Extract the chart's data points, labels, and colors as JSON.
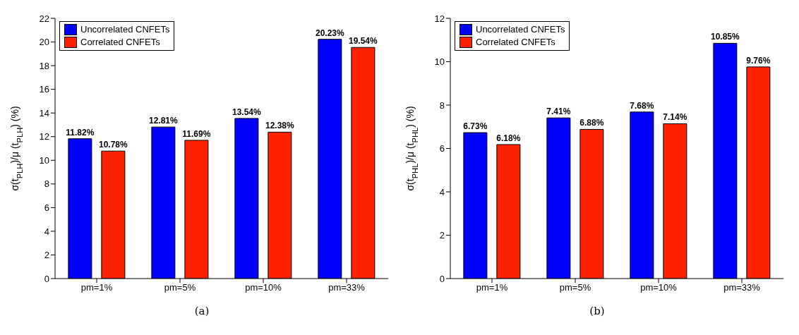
{
  "chart_data": [
    {
      "type": "bar",
      "ylabel": "σ(t$_{PLH}$)/μ (t$_{PLH}$) (%)",
      "categories": [
        "pm=1%",
        "pm=5%",
        "pm=10%",
        "pm=33%"
      ],
      "series": [
        {
          "name": "Uncorrelated CNFETs",
          "color": "#0000ff",
          "values": [
            11.82,
            12.81,
            13.54,
            20.23
          ],
          "value_labels": [
            "11.82%",
            "12.81%",
            "13.54%",
            "20.23%"
          ]
        },
        {
          "name": "Correlated CNFETs",
          "color": "#ff2200",
          "values": [
            10.78,
            11.69,
            12.38,
            19.54
          ],
          "value_labels": [
            "10.78%",
            "11.69%",
            "12.38%",
            "19.54%"
          ]
        }
      ],
      "ylim": [
        0,
        22
      ],
      "yticks": [
        0,
        2,
        4,
        6,
        8,
        10,
        12,
        14,
        16,
        18,
        20,
        22
      ],
      "grid": false,
      "legend": "top left",
      "annotations": [
        "(a)"
      ]
    },
    {
      "type": "bar",
      "ylabel": "σ(t$_{PHL}$)/μ (t$_{PHL}$) (%)",
      "categories": [
        "pm=1%",
        "pm=5%",
        "pm=10%",
        "pm=33%"
      ],
      "series": [
        {
          "name": "Uncorrelated CNFETs",
          "color": "#0000ff",
          "values": [
            6.73,
            7.41,
            7.68,
            10.85
          ],
          "value_labels": [
            "6.73%",
            "7.41%",
            "7.68%",
            "10.85%"
          ]
        },
        {
          "name": "Correlated CNFETs",
          "color": "#ff2200",
          "values": [
            6.18,
            6.88,
            7.14,
            9.76
          ],
          "value_labels": [
            "6.18%",
            "6.88%",
            "7.14%",
            "9.76%"
          ]
        }
      ],
      "ylim": [
        0,
        12
      ],
      "yticks": [
        0,
        2,
        4,
        6,
        8,
        10,
        12
      ],
      "grid": false,
      "legend": "top left",
      "annotations": [
        "(b)"
      ]
    }
  ]
}
